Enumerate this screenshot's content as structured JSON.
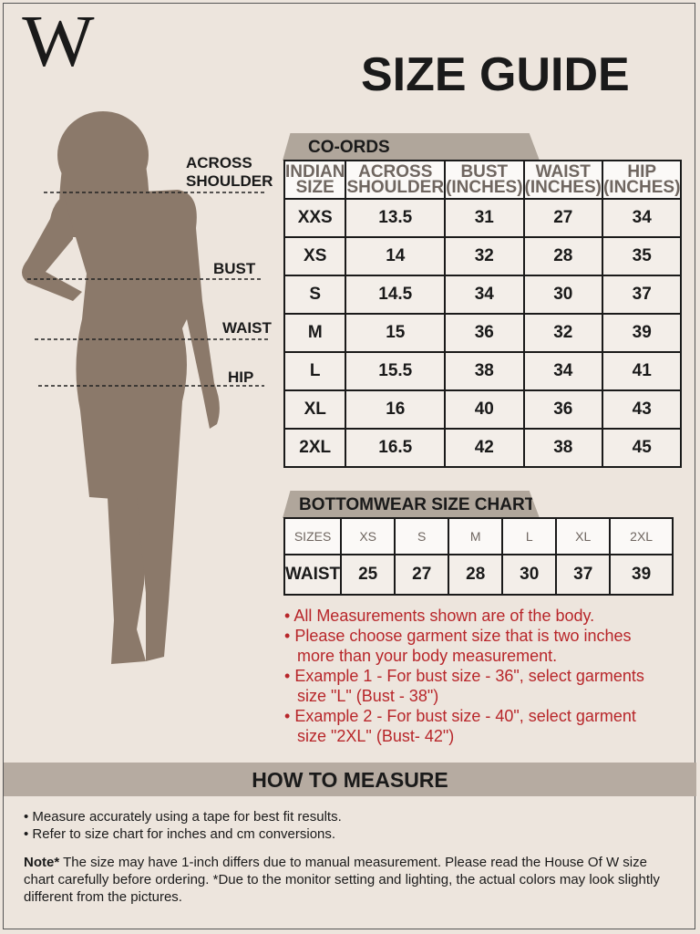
{
  "logo": "W",
  "title": "SIZE GUIDE",
  "figure_labels": {
    "shoulder": [
      "ACROSS",
      "SHOULDER"
    ],
    "bust": "BUST",
    "waist": "WAIST",
    "hip": "HIP"
  },
  "coords": {
    "tab": "CO-ORDS",
    "headers": [
      [
        "INDIAN",
        "SIZE"
      ],
      [
        "ACROSS",
        "SHOULDER"
      ],
      [
        "BUST",
        "(INCHES)"
      ],
      [
        "WAIST",
        "(INCHES)"
      ],
      [
        "HIP",
        "(INCHES)"
      ]
    ],
    "rows": [
      [
        "XXS",
        "13.5",
        "31",
        "27",
        "34"
      ],
      [
        "XS",
        "14",
        "32",
        "28",
        "35"
      ],
      [
        "S",
        "14.5",
        "34",
        "30",
        "37"
      ],
      [
        "M",
        "15",
        "36",
        "32",
        "39"
      ],
      [
        "L",
        "15.5",
        "38",
        "34",
        "41"
      ],
      [
        "XL",
        "16",
        "40",
        "36",
        "43"
      ],
      [
        "2XL",
        "16.5",
        "42",
        "38",
        "45"
      ]
    ]
  },
  "bottomwear": {
    "tab": "BOTTOMWEAR SIZE CHART",
    "headers": [
      "SIZES",
      "XS",
      "S",
      "M",
      "L",
      "XL",
      "2XL"
    ],
    "row": [
      "WAIST",
      "25",
      "27",
      "28",
      "30",
      "37",
      "39"
    ]
  },
  "notes": [
    {
      "bullet": "• ",
      "text": "All Measurements shown are of the body."
    },
    {
      "bullet": "• ",
      "text": "Please choose garment size that is two inches",
      "cont": "more than your body measurement."
    },
    {
      "bullet": "• ",
      "text": "Example 1 - For bust size - 36\", select garments",
      "cont": "size \"L\" (Bust - 38\")"
    },
    {
      "bullet": "• ",
      "text": "Example 2 - For bust size - 40\", select garment",
      "cont": "size \"2XL\" (Bust- 42\")"
    }
  ],
  "how_to_measure": {
    "title": "HOW TO MEASURE",
    "items": [
      "• Measure accurately using a tape for best fit results.",
      "• Refer to size chart for inches and cm conversions."
    ],
    "note_label": "Note*",
    "note_text": " The size may have 1-inch differs due to manual measurement. Please read the House Of W size chart carefully before ordering. *Due to the monitor setting and lighting, the actual colors may look slightly different from the pictures."
  },
  "colors": {
    "background": "#ede5dd",
    "tab": "#b0a69b",
    "notes": "#b8262a",
    "silhouette": "#8b796a"
  }
}
